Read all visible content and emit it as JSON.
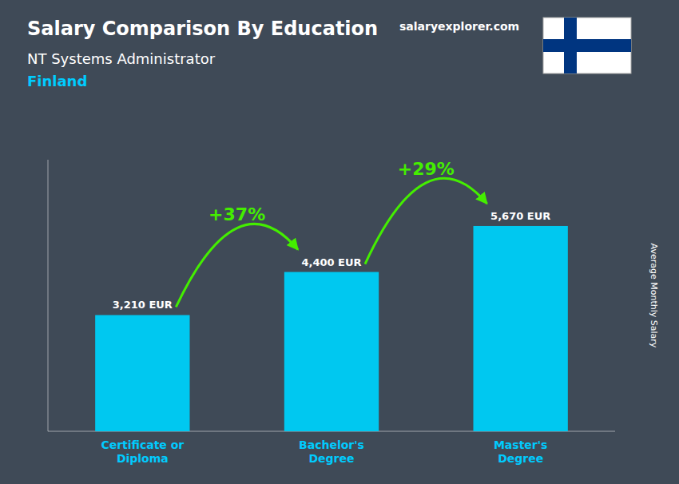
{
  "chart_data": {
    "type": "bar",
    "title": "Salary Comparison By Education",
    "subtitle": "NT Systems Administrator",
    "annotations": [
      "Finland",
      "salaryexplorer.com",
      "+37%",
      "+29%"
    ],
    "ylabel": "Average Monthly Salary",
    "categories": [
      "Certificate or\nDiploma",
      "Bachelor's\nDegree",
      "Master's\nDegree"
    ],
    "values": [
      3210,
      4400,
      5670
    ],
    "value_labels": [
      "3,210 EUR",
      "4,400 EUR",
      "5,670 EUR"
    ],
    "data_labels": true,
    "color": "#00c8f0",
    "ylim": [
      0,
      7500
    ],
    "yticks": [],
    "tick_labels": "x"
  }
}
